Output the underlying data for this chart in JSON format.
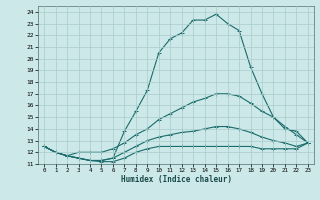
{
  "xlabel": "Humidex (Indice chaleur)",
  "bg_color": "#cce8e8",
  "grid_color": "#aacccc",
  "line_color": "#1a6b6b",
  "xlim": [
    -0.5,
    23.5
  ],
  "ylim": [
    11,
    24.5
  ],
  "yticks": [
    11,
    12,
    13,
    14,
    15,
    16,
    17,
    18,
    19,
    20,
    21,
    22,
    23,
    24
  ],
  "xticks": [
    0,
    1,
    2,
    3,
    4,
    5,
    6,
    7,
    8,
    9,
    10,
    11,
    12,
    13,
    14,
    15,
    16,
    17,
    18,
    19,
    20,
    21,
    22,
    23
  ],
  "line1_y": [
    12.5,
    12.0,
    11.7,
    11.5,
    11.3,
    11.3,
    11.5,
    13.8,
    15.5,
    17.3,
    20.5,
    21.7,
    22.2,
    23.3,
    23.3,
    23.8,
    23.0,
    22.4,
    19.3,
    17.0,
    15.0,
    14.0,
    13.8,
    12.8
  ],
  "line2_y": [
    12.5,
    12.0,
    11.7,
    12.0,
    12.0,
    12.0,
    12.3,
    12.8,
    13.5,
    14.0,
    14.8,
    15.3,
    15.8,
    16.3,
    16.6,
    17.0,
    17.0,
    16.8,
    16.2,
    15.5,
    15.0,
    14.2,
    13.5,
    12.8
  ],
  "line3_y": [
    12.5,
    12.0,
    11.7,
    11.5,
    11.3,
    11.3,
    11.5,
    12.0,
    12.5,
    13.0,
    13.3,
    13.5,
    13.7,
    13.8,
    14.0,
    14.2,
    14.2,
    14.0,
    13.7,
    13.3,
    13.0,
    12.8,
    12.5,
    12.8
  ],
  "line4_y": [
    12.5,
    12.0,
    11.7,
    11.5,
    11.3,
    11.2,
    11.2,
    11.5,
    12.0,
    12.3,
    12.5,
    12.5,
    12.5,
    12.5,
    12.5,
    12.5,
    12.5,
    12.5,
    12.5,
    12.3,
    12.3,
    12.3,
    12.3,
    12.8
  ]
}
